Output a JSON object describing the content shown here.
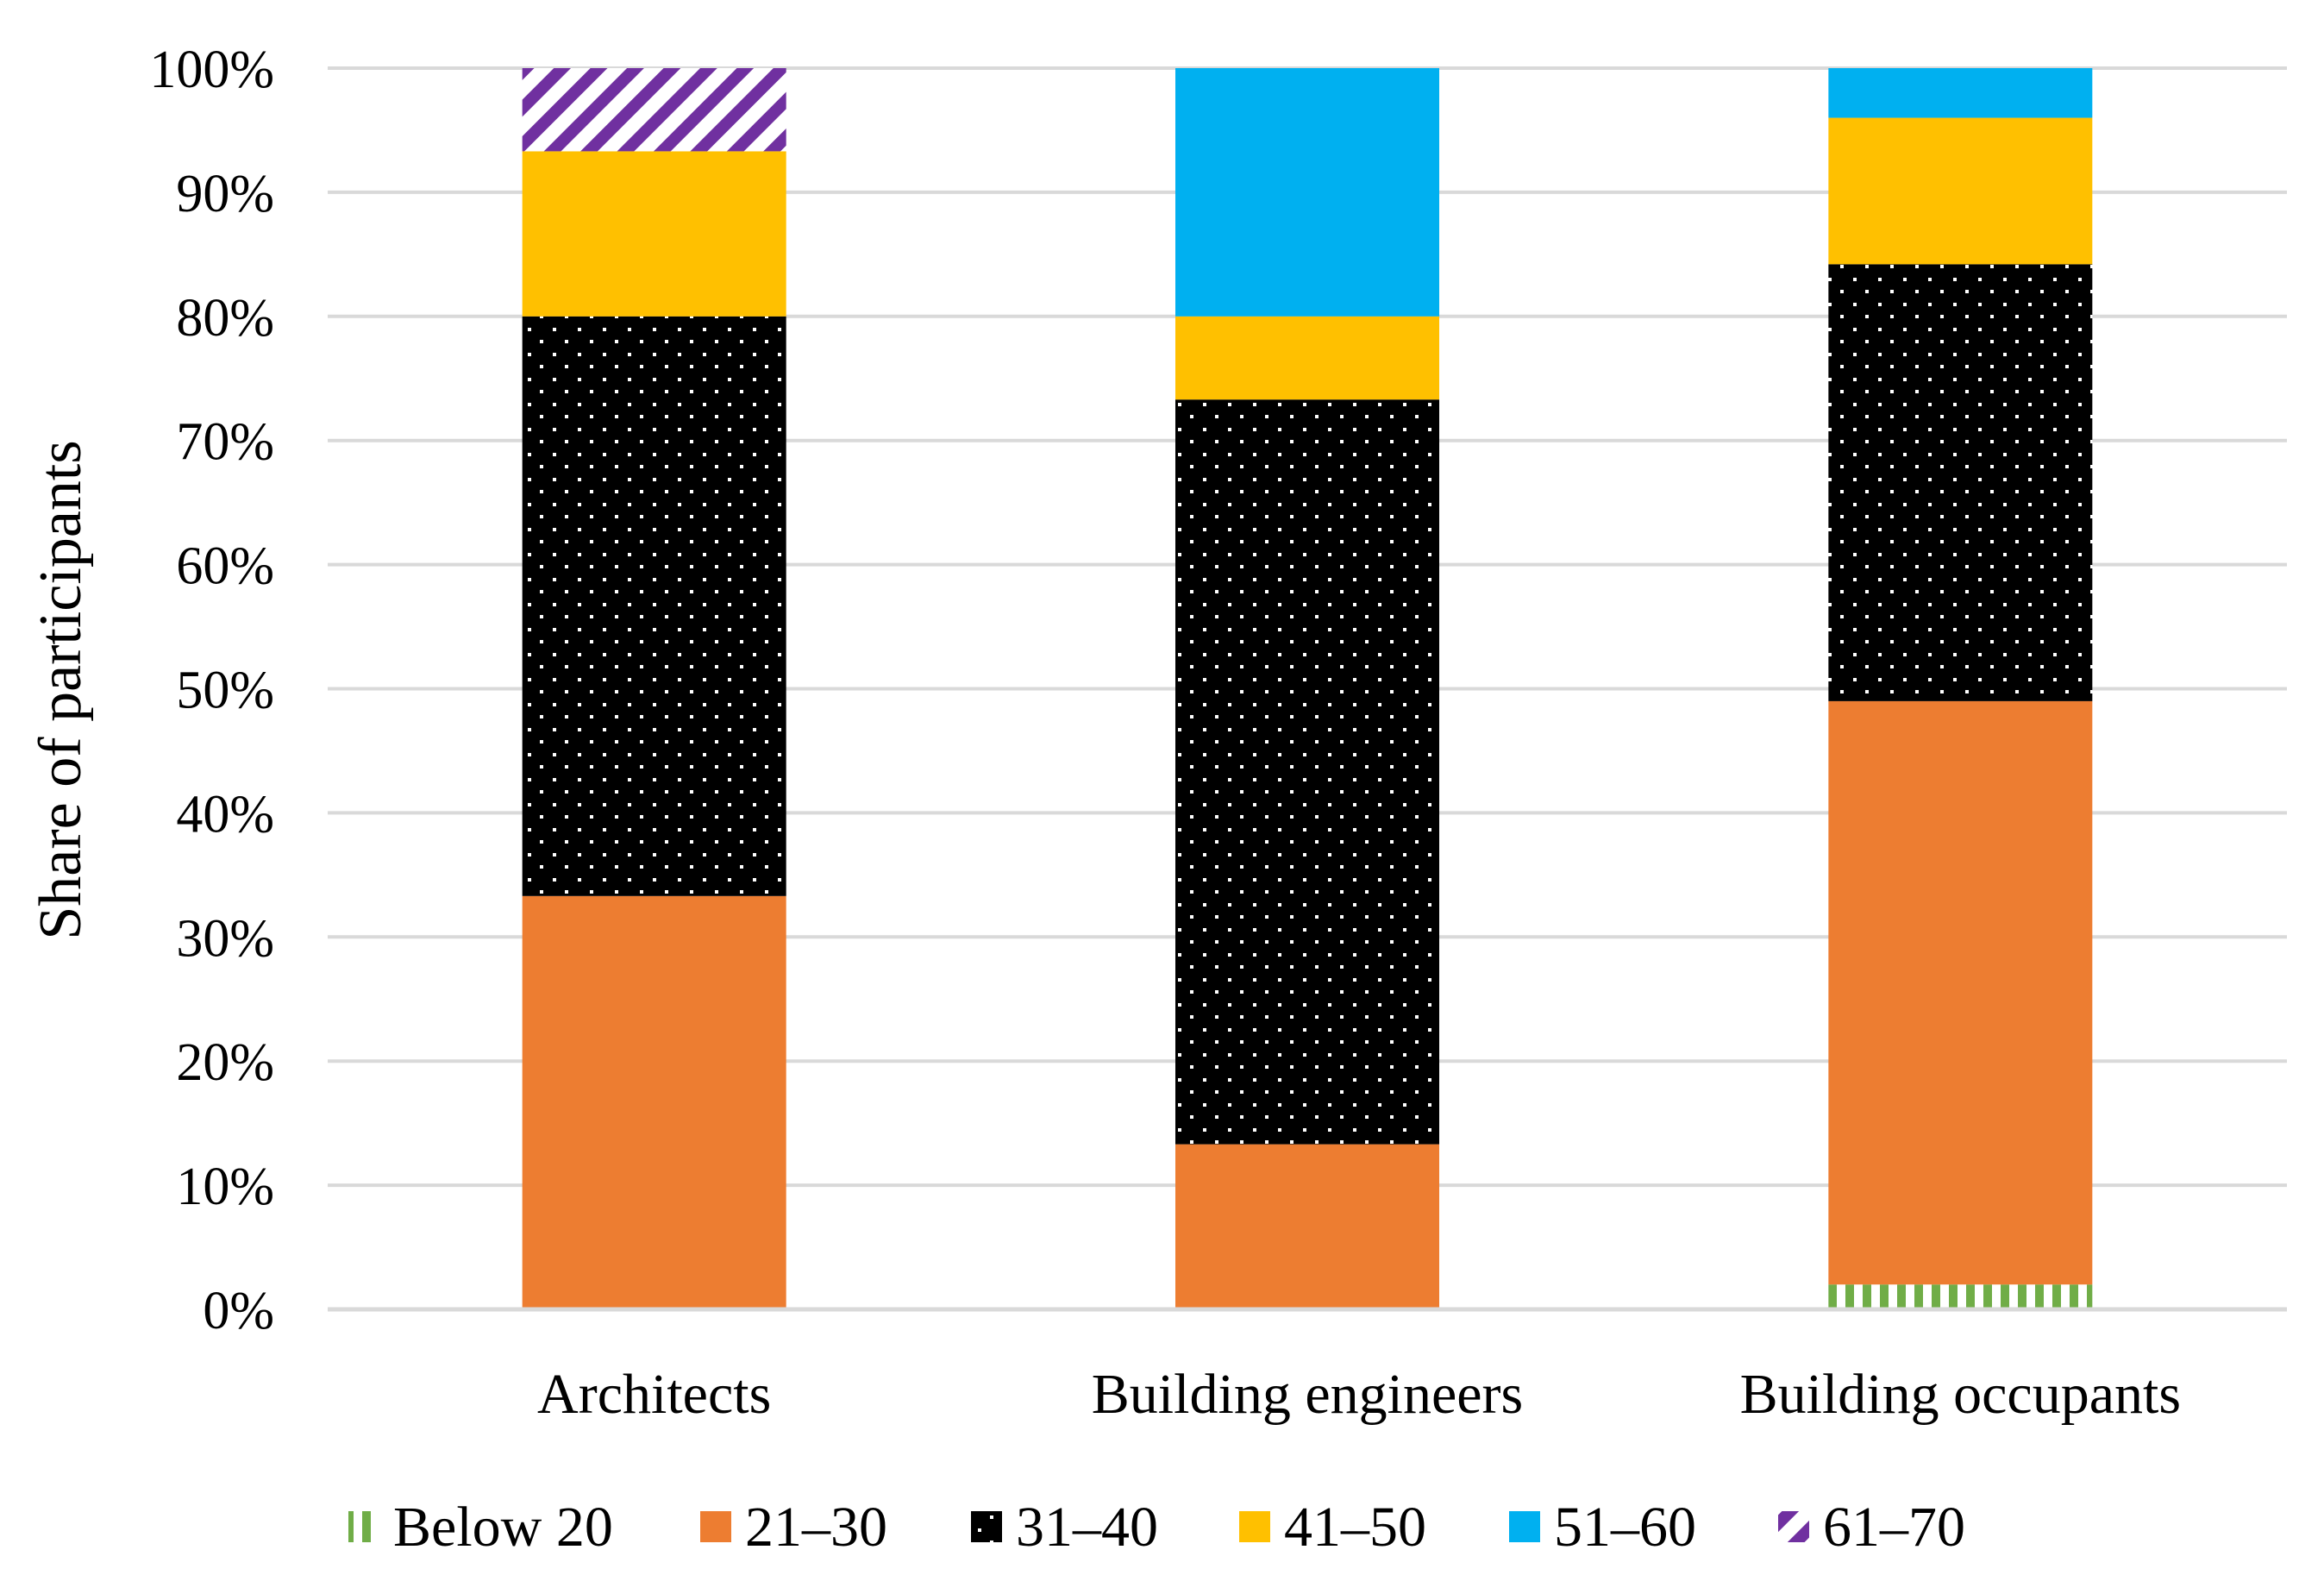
{
  "chart_data": {
    "type": "bar",
    "stacked": true,
    "title": "",
    "xlabel": "",
    "ylabel": "Share of participants",
    "ylim": [
      0,
      100
    ],
    "y_ticks": [
      0,
      10,
      20,
      30,
      40,
      50,
      60,
      70,
      80,
      90,
      100
    ],
    "y_tick_labels": [
      "0%",
      "10%",
      "20%",
      "30%",
      "40%",
      "50%",
      "60%",
      "70%",
      "80%",
      "90%",
      "100%"
    ],
    "grid": true,
    "legend_position": "bottom",
    "categories": [
      "Architects",
      "Building engineers",
      "Building occupants"
    ],
    "series": [
      {
        "name": "Below 20",
        "color": "#70ad47",
        "pattern": "vertical-stripes",
        "values": [
          0,
          0,
          2
        ]
      },
      {
        "name": "21–30",
        "color": "#ed7d31",
        "pattern": "solid",
        "values": [
          33.3,
          13.3,
          47
        ]
      },
      {
        "name": "31–40",
        "color": "#000000",
        "pattern": "dots",
        "values": [
          46.7,
          60,
          35.2
        ]
      },
      {
        "name": "41–50",
        "color": "#ffc000",
        "pattern": "solid",
        "values": [
          13.3,
          6.7,
          11.8
        ]
      },
      {
        "name": "51–60",
        "color": "#00b0f0",
        "pattern": "solid",
        "values": [
          0,
          20,
          4
        ]
      },
      {
        "name": "61–70",
        "color": "#7030a0",
        "pattern": "diagonal-stripes",
        "values": [
          6.7,
          0,
          0
        ]
      }
    ]
  }
}
